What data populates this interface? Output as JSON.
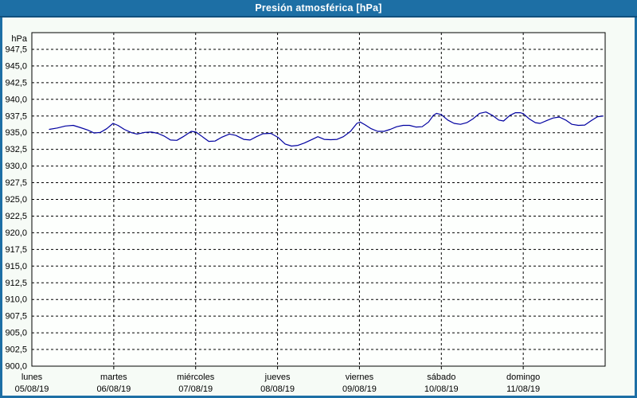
{
  "window": {
    "title": "Presión atmosférica [hPa]"
  },
  "colors": {
    "title_bar_bg": "#1d6fa5",
    "title_text": "#ffffff",
    "outer_frame": "#1d6fa5",
    "chart_bg": "#f6fbf6",
    "plot_bg": "#fdfffd",
    "plot_frame": "#000000",
    "grid": "#000000",
    "axis_text": "#000000",
    "line": "#0000a0"
  },
  "chart_data": {
    "type": "line",
    "title": "Presión atmosférica [hPa]",
    "grid": "dashed",
    "legend": "none",
    "y_axis": {
      "unit": "hPa",
      "min": 900,
      "max": 950,
      "tick_step": 2.5,
      "tick_labels": [
        "947,5",
        "945,0",
        "942,5",
        "940,0",
        "937,5",
        "935,0",
        "932,5",
        "930,0",
        "927,5",
        "925,0",
        "922,5",
        "920,0",
        "917,5",
        "915,0",
        "912,5",
        "910,0",
        "907,5",
        "905,0",
        "902,5",
        "900,0"
      ]
    },
    "x_axis": {
      "span_days": 7,
      "days": [
        {
          "name": "lunes",
          "date": "05/08/19"
        },
        {
          "name": "martes",
          "date": "06/08/19"
        },
        {
          "name": "miércoles",
          "date": "07/08/19"
        },
        {
          "name": "jueves",
          "date": "08/08/19"
        },
        {
          "name": "viernes",
          "date": "09/08/19"
        },
        {
          "name": "sábado",
          "date": "10/08/19"
        },
        {
          "name": "domingo",
          "date": "11/08/19"
        }
      ]
    },
    "series": [
      {
        "name": "Presión atmosférica",
        "color": "#0000a0",
        "x_unit": "days_since_monday_00h",
        "points": [
          [
            0.214,
            935.5
          ],
          [
            0.311,
            935.7
          ],
          [
            0.409,
            936.0
          ],
          [
            0.506,
            936.1
          ],
          [
            0.584,
            935.8
          ],
          [
            0.681,
            935.4
          ],
          [
            0.759,
            934.95
          ],
          [
            0.837,
            935.05
          ],
          [
            0.914,
            935.6
          ],
          [
            0.992,
            936.4
          ],
          [
            1.051,
            936.1
          ],
          [
            1.128,
            935.5
          ],
          [
            1.216,
            935.0
          ],
          [
            1.284,
            934.8
          ],
          [
            1.381,
            935.05
          ],
          [
            1.459,
            935.1
          ],
          [
            1.537,
            934.9
          ],
          [
            1.615,
            934.5
          ],
          [
            1.693,
            933.9
          ],
          [
            1.77,
            933.85
          ],
          [
            1.848,
            934.4
          ],
          [
            1.946,
            935.2
          ],
          [
            2.004,
            935.1
          ],
          [
            2.082,
            934.4
          ],
          [
            2.16,
            933.7
          ],
          [
            2.237,
            933.75
          ],
          [
            2.315,
            934.3
          ],
          [
            2.412,
            934.8
          ],
          [
            2.49,
            934.6
          ],
          [
            2.588,
            934.0
          ],
          [
            2.665,
            933.9
          ],
          [
            2.743,
            934.4
          ],
          [
            2.821,
            934.85
          ],
          [
            2.918,
            934.9
          ],
          [
            3.006,
            934.3
          ],
          [
            3.093,
            933.3
          ],
          [
            3.171,
            933.0
          ],
          [
            3.249,
            933.1
          ],
          [
            3.327,
            933.45
          ],
          [
            3.424,
            934.0
          ],
          [
            3.492,
            934.4
          ],
          [
            3.57,
            934.0
          ],
          [
            3.648,
            933.95
          ],
          [
            3.726,
            934.0
          ],
          [
            3.804,
            934.4
          ],
          [
            3.891,
            935.2
          ],
          [
            3.969,
            936.4
          ],
          [
            4.008,
            936.6
          ],
          [
            4.066,
            936.2
          ],
          [
            4.144,
            935.6
          ],
          [
            4.222,
            935.2
          ],
          [
            4.3,
            935.2
          ],
          [
            4.377,
            935.5
          ],
          [
            4.455,
            935.9
          ],
          [
            4.533,
            936.1
          ],
          [
            4.611,
            936.1
          ],
          [
            4.689,
            935.85
          ],
          [
            4.766,
            935.9
          ],
          [
            4.844,
            936.6
          ],
          [
            4.903,
            937.6
          ],
          [
            4.942,
            937.9
          ],
          [
            5.0,
            937.7
          ],
          [
            5.078,
            936.9
          ],
          [
            5.156,
            936.4
          ],
          [
            5.233,
            936.25
          ],
          [
            5.311,
            936.5
          ],
          [
            5.389,
            937.1
          ],
          [
            5.467,
            937.9
          ],
          [
            5.545,
            938.1
          ],
          [
            5.623,
            937.6
          ],
          [
            5.7,
            936.9
          ],
          [
            5.759,
            936.75
          ],
          [
            5.837,
            937.6
          ],
          [
            5.905,
            938.0
          ],
          [
            5.963,
            938.0
          ],
          [
            6.002,
            937.85
          ],
          [
            6.07,
            937.1
          ],
          [
            6.148,
            936.5
          ],
          [
            6.206,
            936.4
          ],
          [
            6.284,
            936.8
          ],
          [
            6.362,
            937.2
          ],
          [
            6.44,
            937.35
          ],
          [
            6.518,
            936.9
          ],
          [
            6.595,
            936.25
          ],
          [
            6.673,
            936.1
          ],
          [
            6.751,
            936.15
          ],
          [
            6.829,
            936.8
          ],
          [
            6.907,
            937.4
          ],
          [
            6.975,
            937.5
          ]
        ]
      }
    ]
  }
}
